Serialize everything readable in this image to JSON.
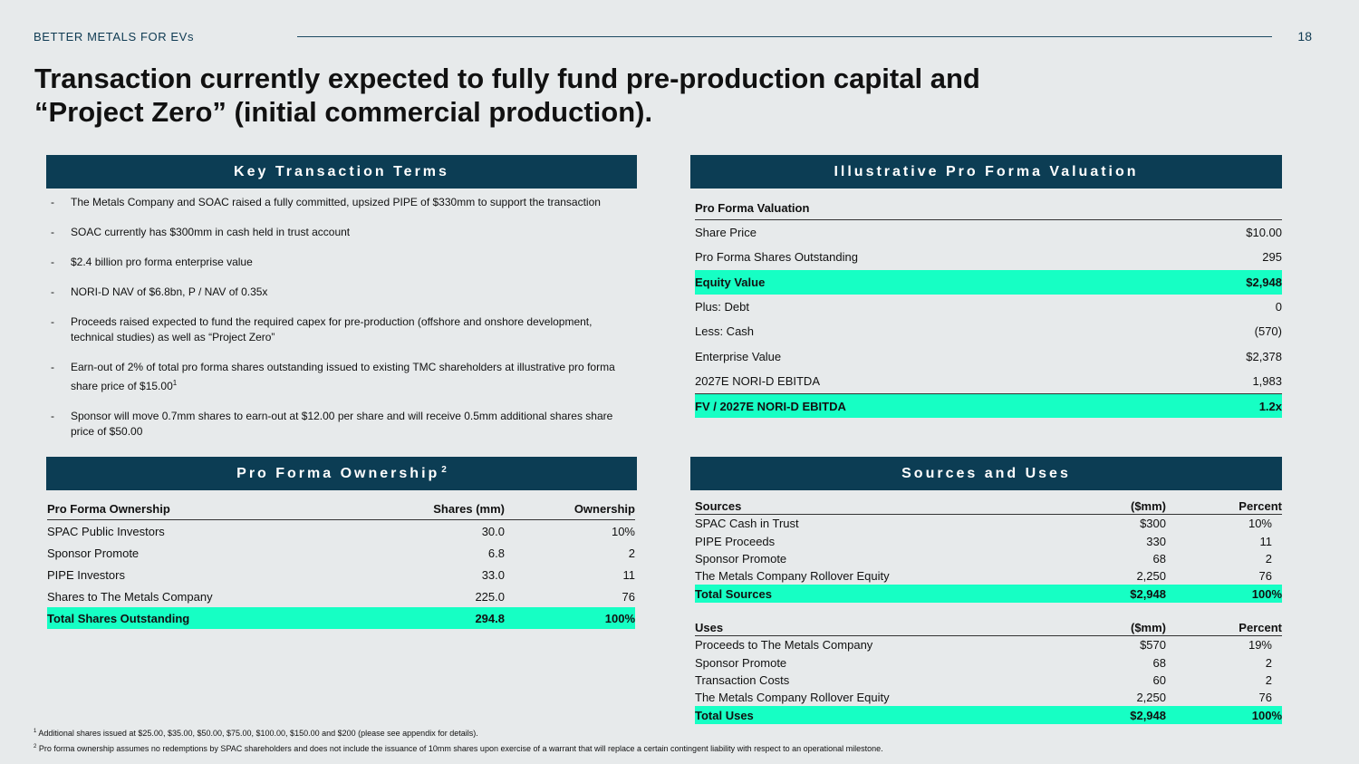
{
  "header": {
    "brand": "BETTER METALS FOR EVs",
    "page_number": "18"
  },
  "title_line1": "Transaction currently expected to fully fund pre-production capital and",
  "title_line2": "“Project Zero” (initial commercial production).",
  "bands": {
    "key_terms": "Key Transaction Terms",
    "valuation": "Illustrative Pro Forma Valuation",
    "ownership": "Pro Forma Ownership",
    "ownership_sup": "2",
    "sources_uses": "Sources and Uses"
  },
  "key_terms": [
    {
      "text": "The Metals Company and SOAC raised a fully committed, upsized PIPE of $330mm to support the transaction"
    },
    {
      "text": "SOAC currently has $300mm in cash held in trust account"
    },
    {
      "text": "$2.4 billion pro forma enterprise value"
    },
    {
      "text": "NORI-D NAV of $6.8bn, P / NAV of 0.35x"
    },
    {
      "text": "Proceeds raised expected to fund the required capex for pre-production (offshore and onshore development, technical studies) as well as “Project Zero”"
    },
    {
      "text": "Earn-out of 2% of total pro forma shares outstanding issued to existing TMC shareholders at illustrative pro forma share price of $15.00",
      "sup": "1"
    },
    {
      "text": "Sponsor will move 0.7mm shares to earn-out at $12.00 per share and will receive 0.5mm additional shares share price of $50.00"
    }
  ],
  "valuation": {
    "header": "Pro Forma Valuation",
    "rows": [
      {
        "label": "Share Price",
        "value": "$10.00"
      },
      {
        "label": "Pro Forma Shares Outstanding",
        "value": "295"
      },
      {
        "label": "Equity Value",
        "value": "$2,948"
      },
      {
        "label": "Plus: Debt",
        "value": "0"
      },
      {
        "label": "Less: Cash",
        "value": "(570)"
      },
      {
        "label": "Enterprise Value",
        "value": "$2,378"
      },
      {
        "label": "2027E NORI-D EBITDA",
        "value": "1,983"
      },
      {
        "label": "FV / 2027E NORI-D EBITDA",
        "value": "1.2x"
      }
    ]
  },
  "ownership": {
    "headers": [
      "Pro Forma Ownership",
      "Shares (mm)",
      "Ownership"
    ],
    "rows": [
      [
        "SPAC Public Investors",
        "30.0",
        "10%"
      ],
      [
        "Sponsor Promote",
        "6.8",
        "2"
      ],
      [
        "PIPE Investors",
        "33.0",
        "11"
      ],
      [
        "Shares to The Metals Company",
        "225.0",
        "76"
      ],
      [
        "Total Shares Outstanding",
        "294.8",
        "100%"
      ]
    ]
  },
  "sources": {
    "headers": [
      "Sources",
      "($mm)",
      "Percent"
    ],
    "rows": [
      [
        "SPAC Cash in Trust",
        "$300",
        "10%"
      ],
      [
        "PIPE Proceeds",
        "330",
        "11"
      ],
      [
        "Sponsor Promote",
        "68",
        "2"
      ],
      [
        "The Metals Company Rollover Equity",
        "2,250",
        "76"
      ],
      [
        "Total Sources",
        "$2,948",
        "100%"
      ]
    ]
  },
  "uses": {
    "headers": [
      "Uses",
      "($mm)",
      "Percent"
    ],
    "rows": [
      [
        "Proceeds to The Metals Company",
        "$570",
        "19%"
      ],
      [
        "Sponsor Promote",
        "68",
        "2"
      ],
      [
        "Transaction Costs",
        "60",
        "2"
      ],
      [
        "The Metals Company Rollover Equity",
        "2,250",
        "76"
      ],
      [
        "Total Uses",
        "$2,948",
        "100%"
      ]
    ]
  },
  "footnotes": [
    {
      "sup": "1",
      "text": " Additional shares issued at $25.00, $35.00, $50.00, $75.00, $100.00, $150.00 and $200 (please see appendix for details)."
    },
    {
      "sup": "2",
      "text": " Pro forma ownership assumes no redemptions by SPAC shareholders and does not include the issuance of 10mm shares upon exercise of a warrant that will replace a certain contingent liability with respect to an operational milestone."
    }
  ]
}
